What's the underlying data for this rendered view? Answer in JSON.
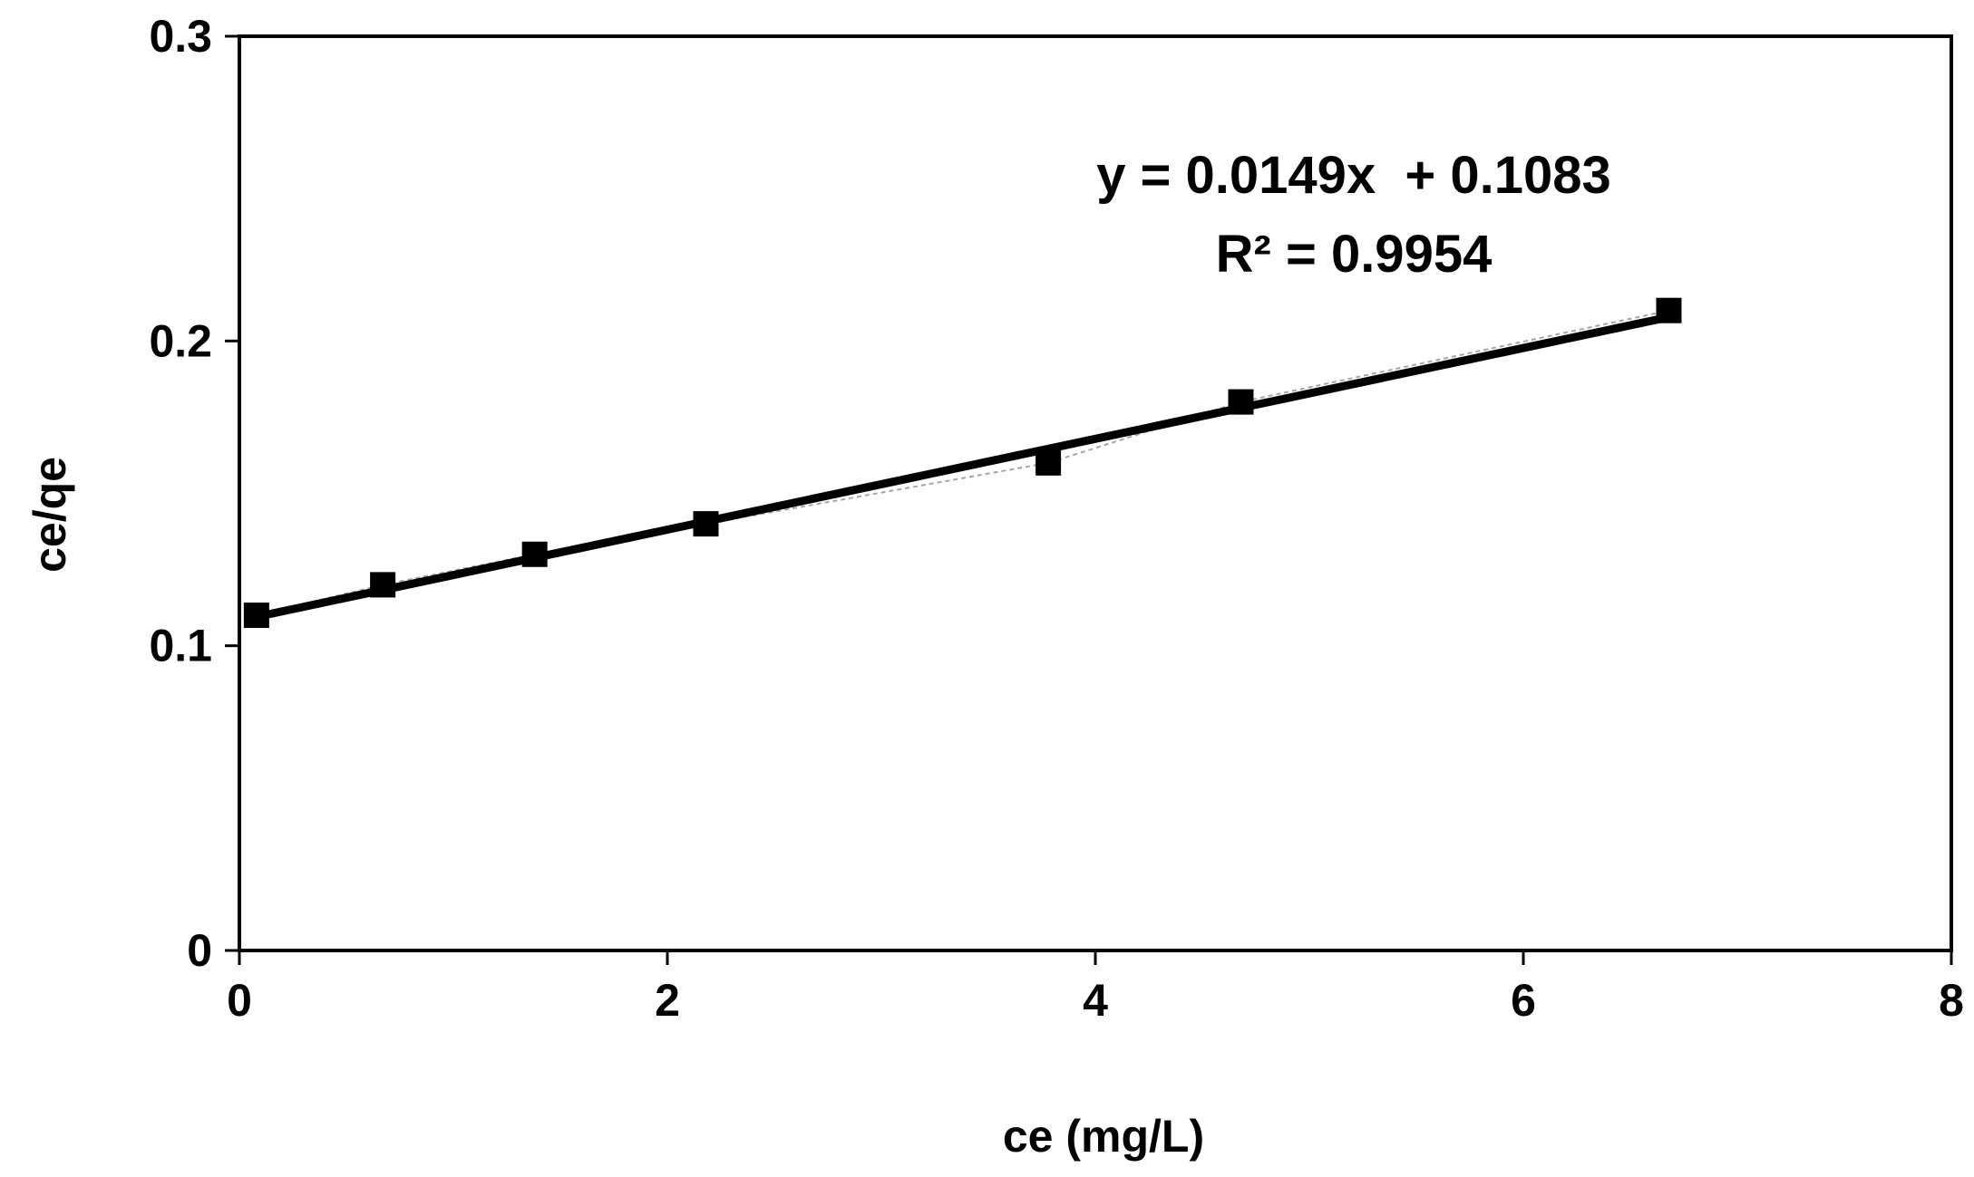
{
  "chart_data": {
    "type": "scatter",
    "title": "",
    "xlabel": "ce (mg/L)",
    "ylabel": "ce/qe",
    "xlim": [
      0,
      8
    ],
    "ylim": [
      0,
      0.3
    ],
    "x_ticks": [
      0,
      2,
      4,
      6,
      8
    ],
    "y_ticks": [
      0,
      0.1,
      0.2,
      0.3
    ],
    "x_tick_labels": [
      "0",
      "2",
      "4",
      "6",
      "8"
    ],
    "y_tick_labels": [
      "0",
      "0.1",
      "0.2",
      "0.3"
    ],
    "grid": false,
    "legend": "none",
    "series": [
      {
        "x": [
          0.08,
          0.67,
          1.38,
          2.18,
          3.78,
          4.68,
          6.68
        ],
        "y": [
          0.11,
          0.12,
          0.13,
          0.14,
          0.16,
          0.18,
          0.21
        ],
        "marker": "square",
        "color": "#000000",
        "connector_color": "#a6a6a6"
      }
    ],
    "trendline": {
      "slope": 0.0149,
      "intercept": 0.1083,
      "x_range": [
        0.08,
        6.68
      ],
      "color": "#000000"
    },
    "annotations": [
      "y = 0.0149x  + 0.1083",
      "R² = 0.9954"
    ]
  }
}
